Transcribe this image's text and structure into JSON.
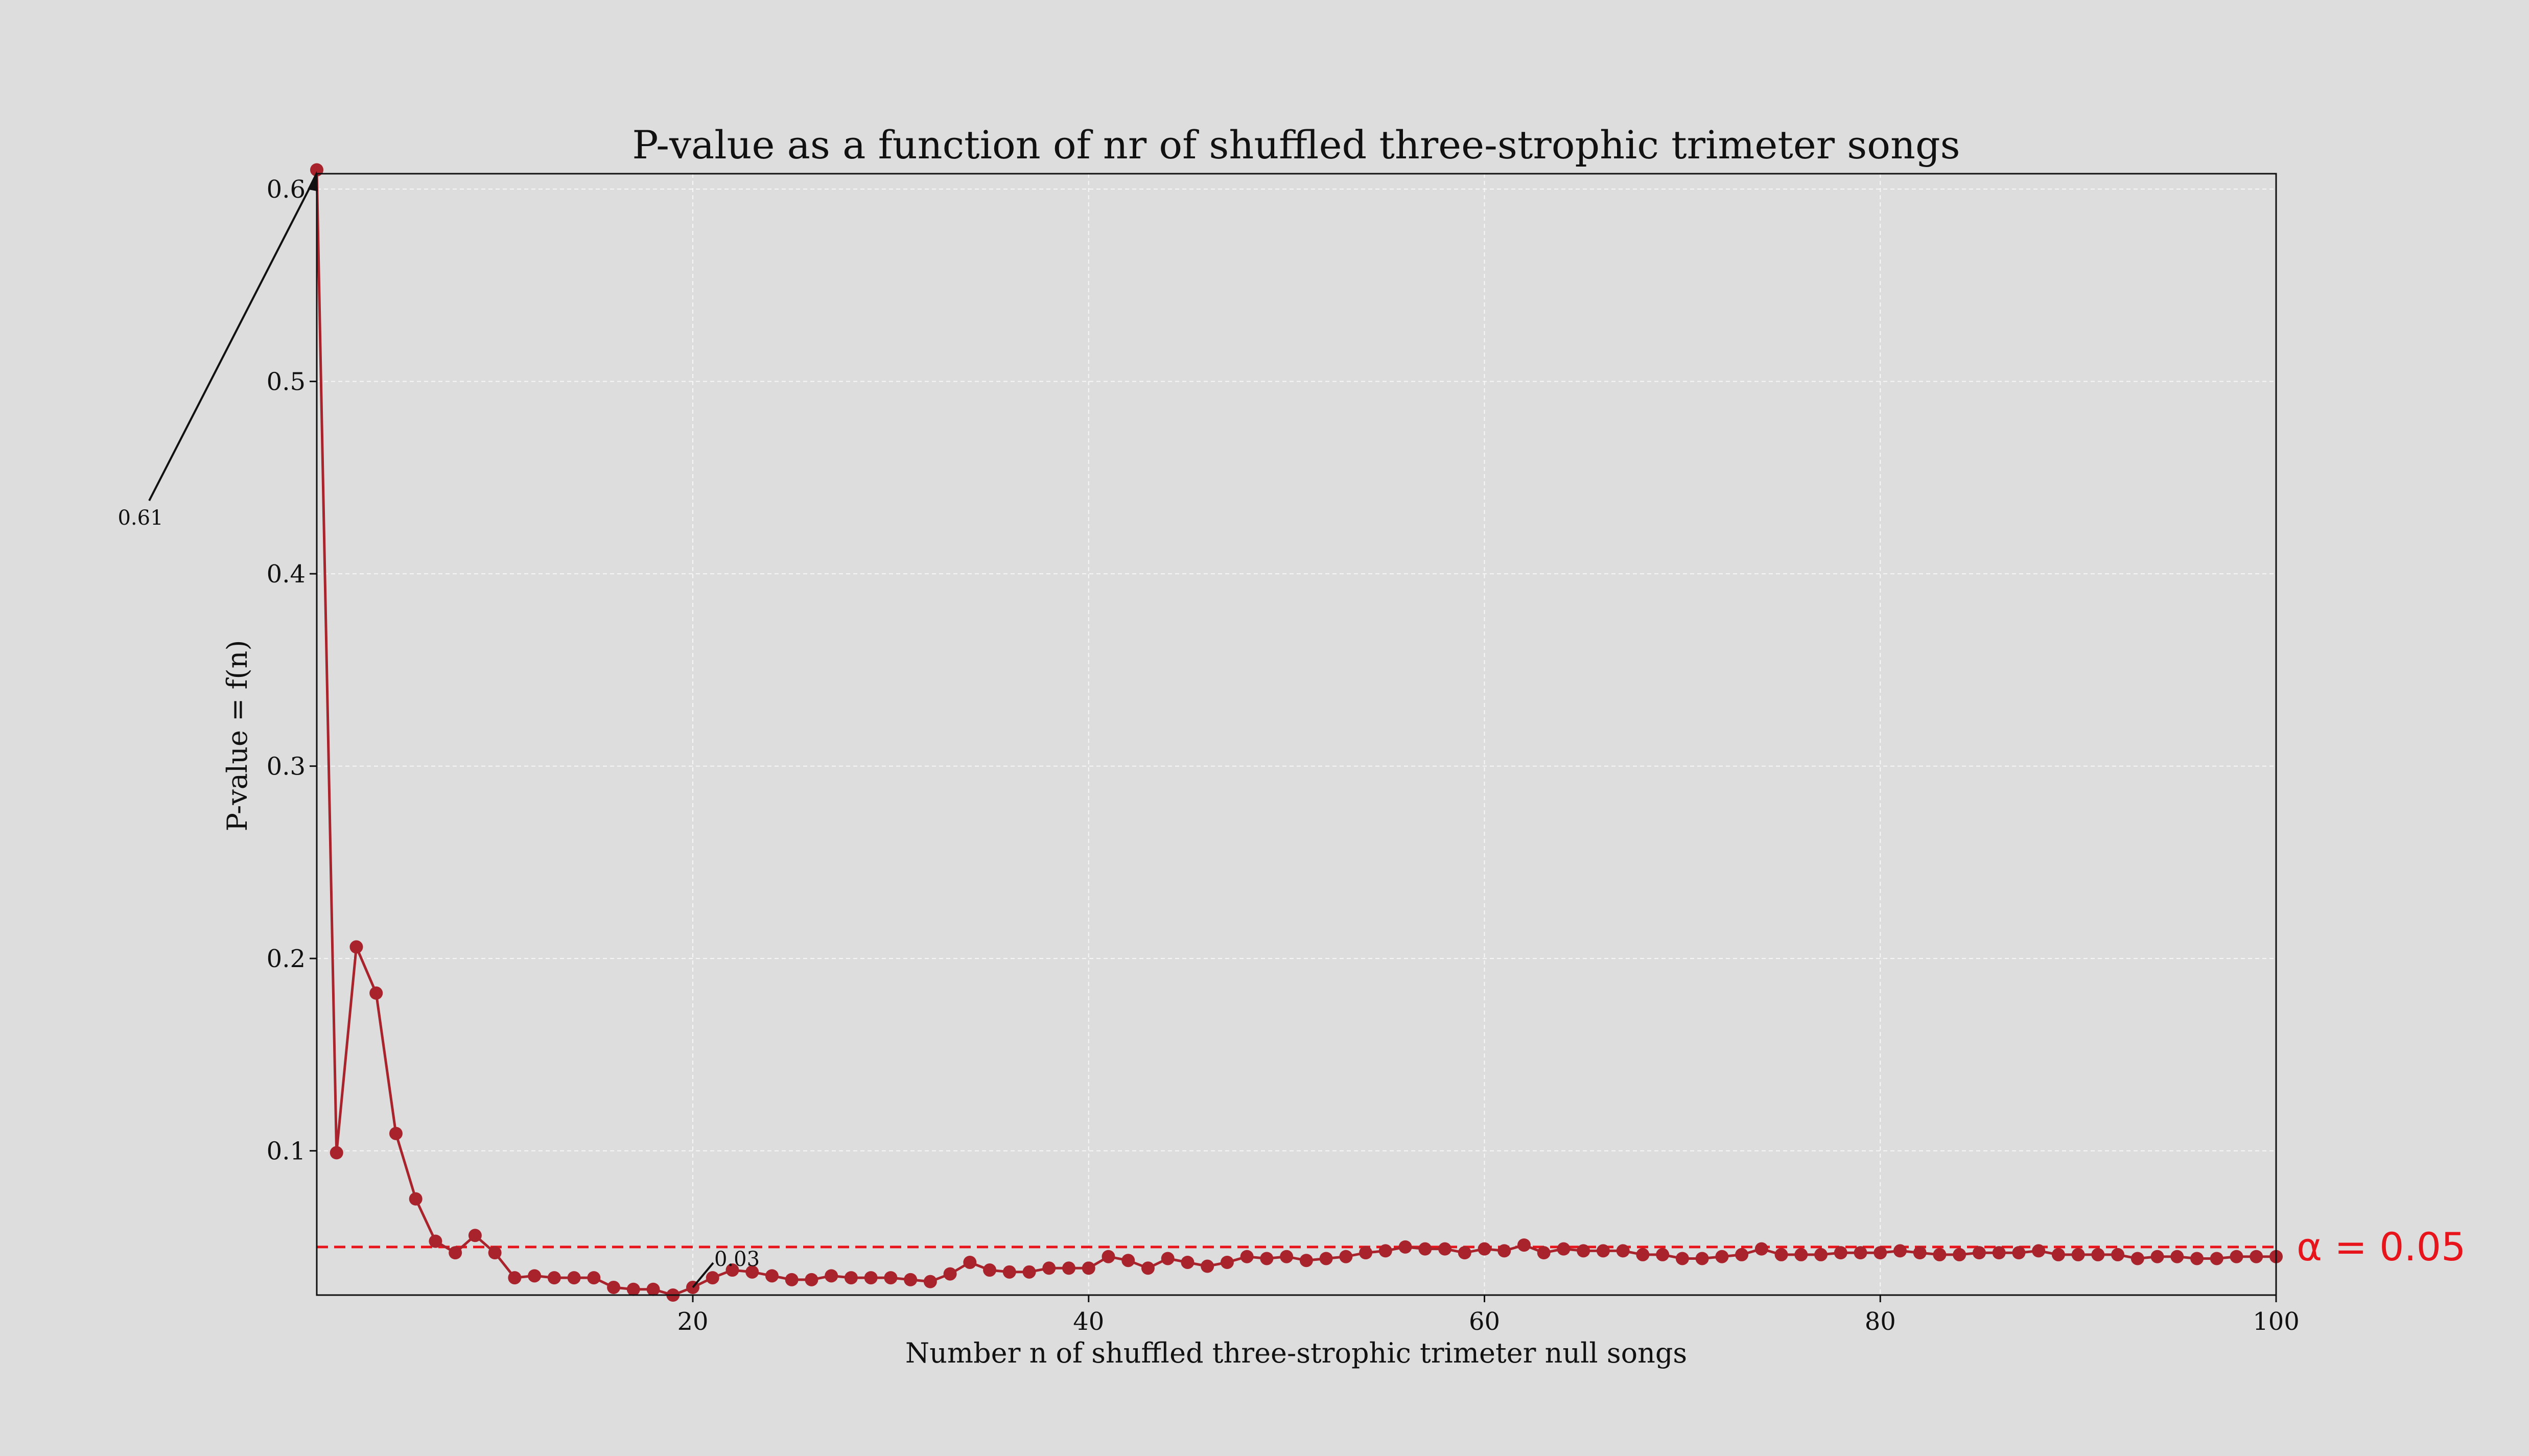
{
  "chart_data": {
    "type": "line",
    "title": "P-value as a function of nr of shuffled three-strophic trimeter songs",
    "xlabel": "Number n of shuffled three-strophic trimeter null songs",
    "ylabel": "P-value = f(n)",
    "xlim": [
      1,
      100
    ],
    "ylim": [
      0.025,
      0.608
    ],
    "x_ticks": [
      20,
      40,
      60,
      80,
      100
    ],
    "y_ticks": [
      0.1,
      0.2,
      0.3,
      0.4,
      0.5,
      0.6
    ],
    "x_tick_labels": [
      "20",
      "40",
      "60",
      "80",
      "100"
    ],
    "y_tick_labels": [
      "0.1",
      "0.2",
      "0.3",
      "0.4",
      "0.5",
      "0.6"
    ],
    "grid": true,
    "series": [
      {
        "color": "#a8232b",
        "marker": "circle",
        "x": [
          1,
          2,
          3,
          4,
          5,
          6,
          7,
          8,
          9,
          10,
          11,
          12,
          13,
          14,
          15,
          16,
          17,
          18,
          19,
          20,
          21,
          22,
          23,
          24,
          25,
          26,
          27,
          28,
          29,
          30,
          31,
          32,
          33,
          34,
          35,
          36,
          37,
          38,
          39,
          40,
          41,
          42,
          43,
          44,
          45,
          46,
          47,
          48,
          49,
          50,
          51,
          52,
          53,
          54,
          55,
          56,
          57,
          58,
          59,
          60,
          61,
          62,
          63,
          64,
          65,
          66,
          67,
          68,
          69,
          70,
          71,
          72,
          73,
          74,
          75,
          76,
          77,
          78,
          79,
          80,
          81,
          82,
          83,
          84,
          85,
          86,
          87,
          88,
          89,
          90,
          91,
          92,
          93,
          94,
          95,
          96,
          97,
          98,
          99,
          100
        ],
        "values": [
          0.61,
          0.099,
          0.206,
          0.182,
          0.109,
          0.075,
          0.053,
          0.047,
          0.056,
          0.047,
          0.034,
          0.035,
          0.034,
          0.034,
          0.034,
          0.029,
          0.028,
          0.028,
          0.025,
          0.029,
          0.034,
          0.038,
          0.037,
          0.035,
          0.033,
          0.033,
          0.035,
          0.034,
          0.034,
          0.034,
          0.033,
          0.032,
          0.036,
          0.042,
          0.038,
          0.037,
          0.037,
          0.039,
          0.039,
          0.039,
          0.045,
          0.043,
          0.039,
          0.044,
          0.042,
          0.04,
          0.042,
          0.045,
          0.044,
          0.045,
          0.043,
          0.044,
          0.045,
          0.047,
          0.048,
          0.05,
          0.049,
          0.049,
          0.047,
          0.049,
          0.048,
          0.051,
          0.047,
          0.049,
          0.048,
          0.048,
          0.048,
          0.046,
          0.046,
          0.044,
          0.044,
          0.045,
          0.046,
          0.049,
          0.046,
          0.046,
          0.046,
          0.047,
          0.047,
          0.047,
          0.048,
          0.047,
          0.046,
          0.046,
          0.047,
          0.047,
          0.047,
          0.048,
          0.046,
          0.046,
          0.046,
          0.046,
          0.044,
          0.045,
          0.045,
          0.044,
          0.044,
          0.045,
          0.045,
          0.045
        ]
      }
    ],
    "threshold": {
      "value": 0.05,
      "label": "α = 0.05",
      "color": "#e8141b",
      "style": "dashed"
    },
    "annotations": [
      {
        "text": "0.61",
        "x": 1,
        "y": 0.61
      },
      {
        "text": "0.03",
        "x": 20,
        "y": 0.029
      }
    ]
  }
}
